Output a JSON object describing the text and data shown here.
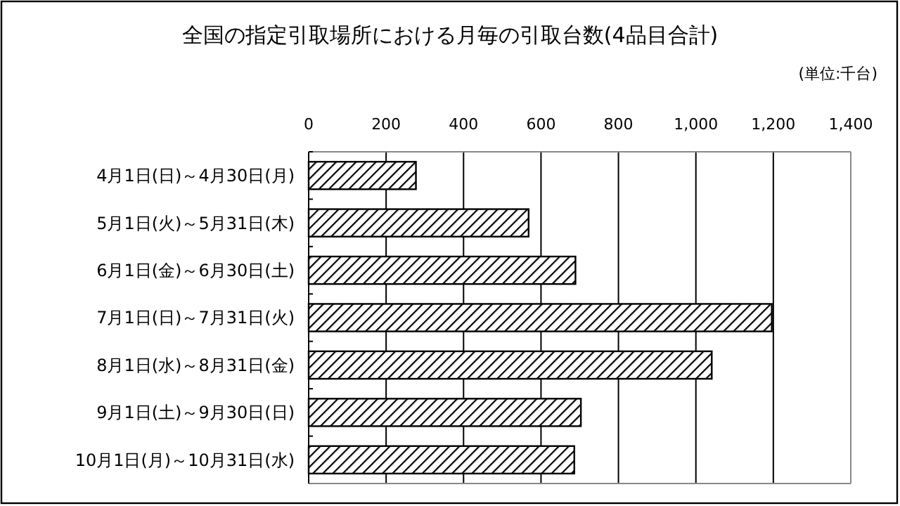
{
  "chart_data": {
    "type": "bar",
    "orientation": "horizontal",
    "title": "全国の指定引取場所における月毎の引取台数(4品目合計)",
    "annotations": [
      "(単位:千台)"
    ],
    "categories": [
      "4月1日(日)～4月30日(月)",
      "5月1日(火)～5月31日(木)",
      "6月1日(金)～6月30日(土)",
      "7月1日(日)～7月31日(火)",
      "8月1日(水)～8月31日(金)",
      "9月1日(土)～9月30日(日)",
      "10月1日(月)～10月31日(水)"
    ],
    "values": [
      277,
      568,
      689,
      1196,
      1041,
      703,
      686
    ],
    "color": "#000000",
    "xlim": [
      0,
      1400
    ],
    "xticks": [
      0,
      200,
      400,
      600,
      800,
      {
        "value": 1000,
        "label": "1,000"
      },
      {
        "value": 1200,
        "label": "1,200"
      },
      {
        "value": 1400,
        "label": "1,400"
      }
    ],
    "grid": "x"
  }
}
